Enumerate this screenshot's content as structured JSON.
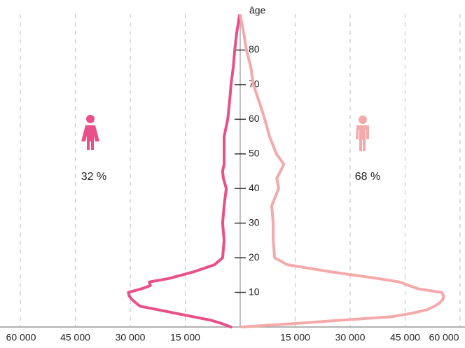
{
  "chart_data": {
    "type": "pyramid",
    "ylabel": "âge",
    "x": [
      0,
      1,
      2,
      3,
      4,
      5,
      6,
      7,
      8,
      9,
      10,
      11,
      12,
      13,
      14,
      16,
      18,
      20,
      25,
      30,
      35,
      40,
      43,
      45,
      47,
      50,
      55,
      60,
      65,
      70,
      75,
      80,
      85,
      90
    ],
    "series": [
      {
        "side": "left",
        "color": "#e8508a",
        "values": [
          2500,
          5000,
          8200,
          13000,
          17800,
          22500,
          27300,
          28500,
          29600,
          30300,
          30500,
          27000,
          24500,
          24800,
          19500,
          12500,
          7000,
          4800,
          4400,
          4800,
          4400,
          3800,
          4600,
          4800,
          4400,
          4400,
          4400,
          3400,
          2900,
          2500,
          1900,
          1500,
          950,
          200
        ]
      },
      {
        "side": "right",
        "color": "#f4a9ab",
        "values": [
          400,
          14700,
          28000,
          41500,
          47000,
          51000,
          53000,
          54500,
          55300,
          55500,
          55000,
          48700,
          46000,
          43500,
          37600,
          24300,
          12800,
          9400,
          9000,
          9000,
          8600,
          10500,
          10000,
          11000,
          11900,
          9900,
          8000,
          6700,
          5200,
          3600,
          2900,
          1700,
          960,
          0
        ]
      }
    ],
    "annotations": [
      {
        "text": "32 %",
        "side": "left"
      },
      {
        "text": "68 %",
        "side": "right"
      }
    ],
    "xlim": [
      -60000,
      60000
    ],
    "xticks": [
      {
        "value": -60000,
        "label": "60 000"
      },
      {
        "value": -45000,
        "label": "45 000"
      },
      {
        "value": -30000,
        "label": "30 000"
      },
      {
        "value": -15000,
        "label": "15 000"
      },
      {
        "value": 15000,
        "label": "15 000"
      },
      {
        "value": 30000,
        "label": "30 000"
      },
      {
        "value": 45000,
        "label": "45 000"
      },
      {
        "value": 60000,
        "label": "60 000"
      }
    ],
    "ylim": [
      0,
      90
    ],
    "yticks": [
      10,
      20,
      30,
      40,
      50,
      60,
      70,
      80
    ],
    "grid": true
  }
}
